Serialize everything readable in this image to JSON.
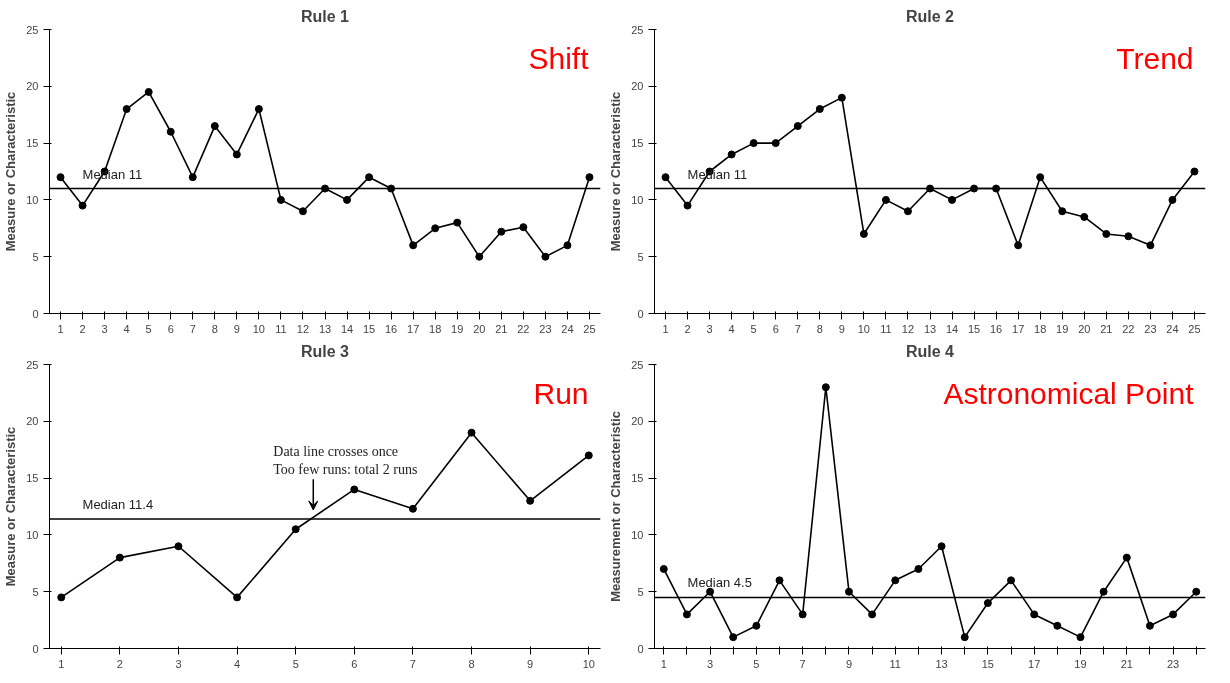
{
  "chart_data": [
    {
      "type": "line",
      "title": "Rule 1",
      "ylabel": "Measure or Characteristic",
      "marker": "circle",
      "line_style": "solid",
      "grid": false,
      "x": [
        1,
        2,
        3,
        4,
        5,
        6,
        7,
        8,
        9,
        10,
        11,
        12,
        13,
        14,
        15,
        16,
        17,
        18,
        19,
        20,
        21,
        22,
        23,
        24,
        25
      ],
      "series": [
        {
          "color": "#000000",
          "values": [
            12,
            9.5,
            12.5,
            18,
            19.5,
            16,
            12,
            16.5,
            14,
            18,
            10,
            9,
            11,
            10,
            12,
            11,
            6,
            7.5,
            8,
            5,
            7.2,
            7.6,
            5,
            6,
            12
          ]
        }
      ],
      "xlim": [
        0.5,
        25.5
      ],
      "xticks": [
        1,
        2,
        3,
        4,
        5,
        6,
        7,
        8,
        9,
        10,
        11,
        12,
        13,
        14,
        15,
        16,
        17,
        18,
        19,
        20,
        21,
        22,
        23,
        24,
        25
      ],
      "ylim": [
        0,
        25
      ],
      "yticks": [
        0,
        5,
        10,
        15,
        20,
        25
      ],
      "ref_lines": [
        {
          "axis": "y",
          "value": 11,
          "label": "Median 11",
          "color": "#000000"
        }
      ],
      "annotations": [
        "Shift"
      ]
    },
    {
      "type": "line",
      "title": "Rule 2",
      "ylabel": "Measure or Characteristic",
      "marker": "circle",
      "line_style": "solid",
      "grid": false,
      "x": [
        1,
        2,
        3,
        4,
        5,
        6,
        7,
        8,
        9,
        10,
        11,
        12,
        13,
        14,
        15,
        16,
        17,
        18,
        19,
        20,
        21,
        22,
        23,
        24,
        25
      ],
      "series": [
        {
          "color": "#000000",
          "values": [
            12,
            9.5,
            12.5,
            14,
            15,
            15,
            16.5,
            18,
            19,
            7,
            10,
            9,
            11,
            10,
            11,
            11,
            6,
            12,
            9,
            8.5,
            7,
            6.8,
            6,
            10,
            12.5
          ]
        }
      ],
      "xlim": [
        0.5,
        25.5
      ],
      "xticks": [
        1,
        2,
        3,
        4,
        5,
        6,
        7,
        8,
        9,
        10,
        11,
        12,
        13,
        14,
        15,
        16,
        17,
        18,
        19,
        20,
        21,
        22,
        23,
        24,
        25
      ],
      "ylim": [
        0,
        25
      ],
      "yticks": [
        0,
        5,
        10,
        15,
        20,
        25
      ],
      "ref_lines": [
        {
          "axis": "y",
          "value": 11,
          "label": "Median 11",
          "color": "#000000"
        }
      ],
      "annotations": [
        "Trend"
      ]
    },
    {
      "type": "line",
      "title": "Rule 3",
      "ylabel": "Measure or Characteristic",
      "marker": "circle",
      "line_style": "solid",
      "grid": false,
      "x": [
        1,
        2,
        3,
        4,
        5,
        6,
        7,
        8,
        9,
        10
      ],
      "series": [
        {
          "color": "#000000",
          "values": [
            4.5,
            8,
            9,
            4.5,
            10.5,
            14,
            12.3,
            19,
            13,
            17
          ]
        }
      ],
      "xlim": [
        0.8,
        10.2
      ],
      "xticks": [
        1,
        2,
        3,
        4,
        5,
        6,
        7,
        8,
        9,
        10
      ],
      "ylim": [
        0,
        25
      ],
      "yticks": [
        0,
        5,
        10,
        15,
        20,
        25
      ],
      "ref_lines": [
        {
          "axis": "y",
          "value": 11.4,
          "label": "Median 11.4",
          "color": "#000000"
        }
      ],
      "annotations": [
        "Run",
        {
          "text": "Data line crosses once\nToo few runs: total 2 runs",
          "x": 5.3,
          "y": 11.4
        }
      ]
    },
    {
      "type": "line",
      "title": "Rule 4",
      "ylabel": "Measurement or Characteristic",
      "marker": "circle",
      "line_style": "solid",
      "grid": false,
      "x": [
        1,
        2,
        3,
        4,
        5,
        6,
        7,
        8,
        9,
        10,
        11,
        12,
        13,
        14,
        15,
        16,
        17,
        18,
        19,
        20,
        21,
        22,
        23,
        24
      ],
      "series": [
        {
          "color": "#000000",
          "values": [
            7,
            3,
            5,
            1,
            2,
            6,
            3,
            23,
            5,
            3,
            6,
            7,
            9,
            1,
            4,
            6,
            3,
            2,
            1,
            5,
            8,
            2,
            3,
            5
          ]
        }
      ],
      "xlim": [
        0.6,
        24.4
      ],
      "xticks": [
        1,
        {
          "value": 2,
          "label": null
        },
        3,
        {
          "value": 4,
          "label": null
        },
        5,
        {
          "value": 6,
          "label": null
        },
        7,
        {
          "value": 8,
          "label": null
        },
        9,
        {
          "value": 10,
          "label": null
        },
        11,
        {
          "value": 12,
          "label": null
        },
        13,
        {
          "value": 14,
          "label": null
        },
        15,
        {
          "value": 16,
          "label": null
        },
        17,
        {
          "value": 18,
          "label": null
        },
        19,
        {
          "value": 20,
          "label": null
        },
        21,
        {
          "value": 22,
          "label": null
        },
        23,
        {
          "value": 24,
          "label": null
        }
      ],
      "ylim": [
        0,
        25
      ],
      "yticks": [
        0,
        5,
        10,
        15,
        20,
        25
      ],
      "ref_lines": [
        {
          "axis": "y",
          "value": 4.5,
          "label": "Median 4.5",
          "color": "#000000"
        }
      ],
      "annotations": [
        "Astronomical Point"
      ]
    }
  ]
}
